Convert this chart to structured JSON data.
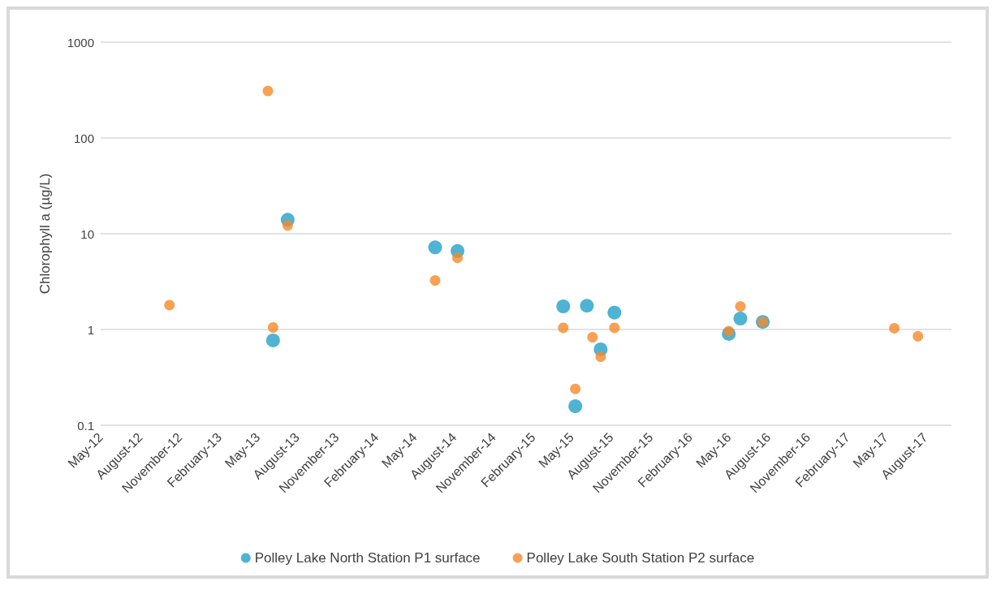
{
  "chart_data": {
    "type": "scatter",
    "ylabel": "Chlorophyll a (µg/L)",
    "log": "y",
    "grid": "y",
    "legend": "bottom",
    "marker": "circle",
    "xlim": [
      "2012-05-01",
      "2017-10-01"
    ],
    "xticks": [
      {
        "value": "2012-05",
        "label": "May-12"
      },
      {
        "value": "2012-08",
        "label": "August-12"
      },
      {
        "value": "2012-11",
        "label": "November-12"
      },
      {
        "value": "2013-02",
        "label": "February-13"
      },
      {
        "value": "2013-05",
        "label": "May-13"
      },
      {
        "value": "2013-08",
        "label": "August-13"
      },
      {
        "value": "2013-11",
        "label": "November-13"
      },
      {
        "value": "2014-02",
        "label": "February-14"
      },
      {
        "value": "2014-05",
        "label": "May-14"
      },
      {
        "value": "2014-08",
        "label": "August-14"
      },
      {
        "value": "2014-11",
        "label": "November-14"
      },
      {
        "value": "2015-02",
        "label": "February-15"
      },
      {
        "value": "2015-05",
        "label": "May-15"
      },
      {
        "value": "2015-08",
        "label": "August-15"
      },
      {
        "value": "2015-11",
        "label": "November-15"
      },
      {
        "value": "2016-02",
        "label": "February-16"
      },
      {
        "value": "2016-05",
        "label": "May-16"
      },
      {
        "value": "2016-08",
        "label": "August-16"
      },
      {
        "value": "2016-11",
        "label": "November-16"
      },
      {
        "value": "2017-02",
        "label": "February-17"
      },
      {
        "value": "2017-05",
        "label": "May-17"
      },
      {
        "value": "2017-08",
        "label": "August-17"
      }
    ],
    "ylim": [
      0.1,
      1000
    ],
    "yticks": [
      0.1,
      1,
      10,
      100,
      1000
    ],
    "series": [
      {
        "name": "Polley Lake North Station P1 surface",
        "color": "#23a0c8",
        "x": [
          "2013-06-06",
          "2013-07-10",
          "2014-06-18",
          "2014-08-09",
          "2015-04-12",
          "2015-05-10",
          "2015-06-06",
          "2015-07-08",
          "2015-08-09",
          "2016-05-01",
          "2016-05-28",
          "2016-07-19"
        ],
        "values": [
          0.77,
          14,
          7.2,
          6.6,
          1.74,
          0.158,
          1.77,
          0.62,
          1.5,
          0.9,
          1.3,
          1.2
        ]
      },
      {
        "name": "Polley Lake South Station P2 surface",
        "color": "#f58a2a",
        "x": [
          "2012-10-08",
          "2013-05-25",
          "2013-06-06",
          "2013-07-10",
          "2014-06-18",
          "2014-08-09",
          "2015-04-12",
          "2015-05-10",
          "2015-06-19",
          "2015-07-08",
          "2015-08-09",
          "2016-05-01",
          "2016-05-28",
          "2016-07-19",
          "2017-05-21",
          "2017-07-15"
        ],
        "values": [
          1.8,
          310,
          1.05,
          12.2,
          3.25,
          5.6,
          1.04,
          0.24,
          0.83,
          0.52,
          1.04,
          0.96,
          1.74,
          1.2,
          1.03,
          0.85
        ]
      }
    ]
  }
}
